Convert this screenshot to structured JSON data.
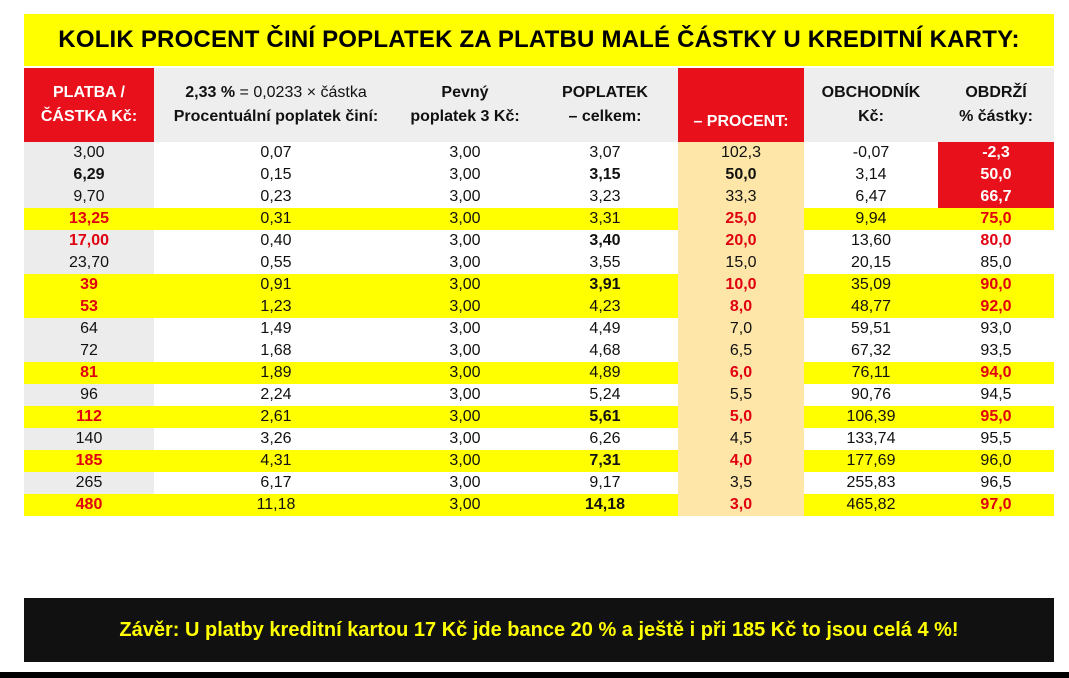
{
  "title": "KOLIK PROCENT ČINÍ POPLATEK ZA PLATBU MALÉ ČÁSTKY U KREDITNÍ KARTY:",
  "headers": {
    "platba_1": "PLATBA /",
    "platba_2": "ČÁSTKA Kč:",
    "pct_1_bold": "2,33 %",
    "pct_1_rest": " = 0,0233 × částka",
    "pct_2": "Procentuální poplatek činí:",
    "fixed_1": "Pevný",
    "fixed_2": "poplatek 3 Kč:",
    "total_1": "POPLATEK",
    "total_2": "– celkem:",
    "procent": "– PROCENT:",
    "merchant_1": "OBCHODNÍK",
    "merchant_2": "Kč:",
    "receives_1": "OBDRŽÍ",
    "receives_2": "% částky:"
  },
  "rows": [
    {
      "platba": "3,00",
      "pct_fee": "0,07",
      "fixed": "3,00",
      "total": "3,07",
      "procent": "102,3",
      "merchant": "-0,07",
      "receives": "-2,3"
    },
    {
      "platba": "6,29",
      "pct_fee": "0,15",
      "fixed": "3,00",
      "total": "3,15",
      "procent": "50,0",
      "merchant": "3,14",
      "receives": "50,0"
    },
    {
      "platba": "9,70",
      "pct_fee": "0,23",
      "fixed": "3,00",
      "total": "3,23",
      "procent": "33,3",
      "merchant": "6,47",
      "receives": "66,7"
    },
    {
      "platba": "13,25",
      "pct_fee": "0,31",
      "fixed": "3,00",
      "total": "3,31",
      "procent": "25,0",
      "merchant": "9,94",
      "receives": "75,0"
    },
    {
      "platba": "17,00",
      "pct_fee": "0,40",
      "fixed": "3,00",
      "total": "3,40",
      "procent": "20,0",
      "merchant": "13,60",
      "receives": "80,0"
    },
    {
      "platba": "23,70",
      "pct_fee": "0,55",
      "fixed": "3,00",
      "total": "3,55",
      "procent": "15,0",
      "merchant": "20,15",
      "receives": "85,0"
    },
    {
      "platba": "39",
      "pct_fee": "0,91",
      "fixed": "3,00",
      "total": "3,91",
      "procent": "10,0",
      "merchant": "35,09",
      "receives": "90,0"
    },
    {
      "platba": "53",
      "pct_fee": "1,23",
      "fixed": "3,00",
      "total": "4,23",
      "procent": "8,0",
      "merchant": "48,77",
      "receives": "92,0"
    },
    {
      "platba": "64",
      "pct_fee": "1,49",
      "fixed": "3,00",
      "total": "4,49",
      "procent": "7,0",
      "merchant": "59,51",
      "receives": "93,0"
    },
    {
      "platba": "72",
      "pct_fee": "1,68",
      "fixed": "3,00",
      "total": "4,68",
      "procent": "6,5",
      "merchant": "67,32",
      "receives": "93,5"
    },
    {
      "platba": "81",
      "pct_fee": "1,89",
      "fixed": "3,00",
      "total": "4,89",
      "procent": "6,0",
      "merchant": "76,11",
      "receives": "94,0"
    },
    {
      "platba": "96",
      "pct_fee": "2,24",
      "fixed": "3,00",
      "total": "5,24",
      "procent": "5,5",
      "merchant": "90,76",
      "receives": "94,5"
    },
    {
      "platba": "112",
      "pct_fee": "2,61",
      "fixed": "3,00",
      "total": "5,61",
      "procent": "5,0",
      "merchant": "106,39",
      "receives": "95,0"
    },
    {
      "platba": "140",
      "pct_fee": "3,26",
      "fixed": "3,00",
      "total": "6,26",
      "procent": "4,5",
      "merchant": "133,74",
      "receives": "95,5"
    },
    {
      "platba": "185",
      "pct_fee": "4,31",
      "fixed": "3,00",
      "total": "7,31",
      "procent": "4,0",
      "merchant": "177,69",
      "receives": "96,0"
    },
    {
      "platba": "265",
      "pct_fee": "6,17",
      "fixed": "3,00",
      "total": "9,17",
      "procent": "3,5",
      "merchant": "255,83",
      "receives": "96,5"
    },
    {
      "platba": "480",
      "pct_fee": "11,18",
      "fixed": "3,00",
      "total": "14,18",
      "procent": "3,0",
      "merchant": "465,82",
      "receives": "97,0"
    }
  ],
  "conclusion": "Závěr: U platby kreditní kartou 17 Kč jde bance 20 % a ještě i při 185 Kč to jsou celá 4 %!",
  "colors": {
    "highlight_yellow": "#ffff00",
    "header_red": "#e8101a",
    "percent_column": "#fde6a8",
    "emphasis_red_text": "#e00010",
    "footer_bg": "#111111"
  }
}
